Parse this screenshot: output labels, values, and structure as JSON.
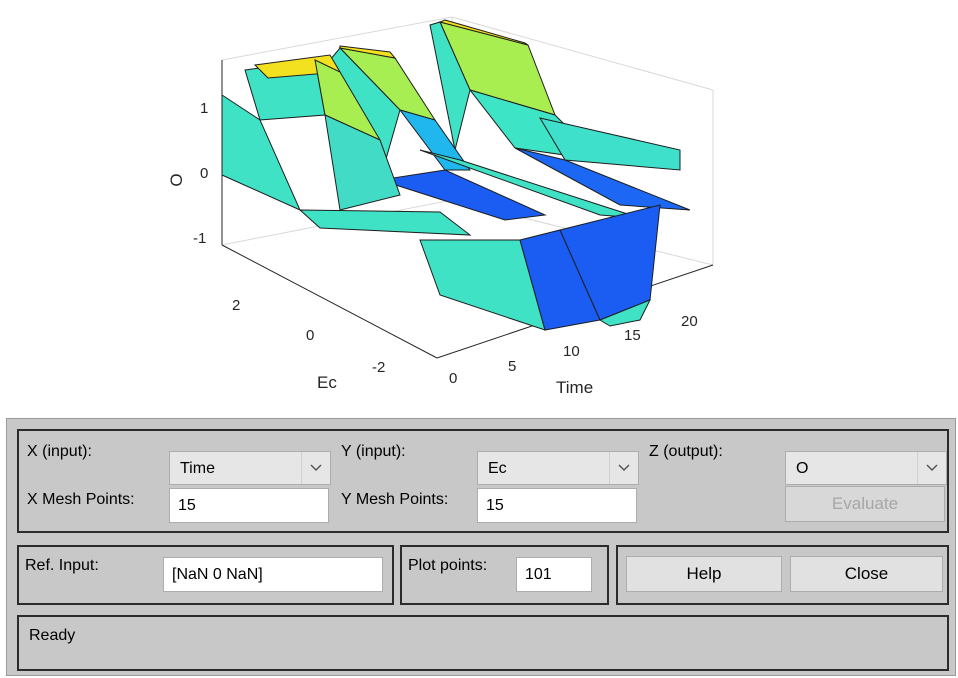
{
  "plot": {
    "zlabel": "O",
    "xlabel": "Time",
    "ylabel": "Ec",
    "z_ticks": [
      "1",
      "0",
      "-1"
    ],
    "x_ticks": [
      "0",
      "5",
      "10",
      "15",
      "20"
    ],
    "y_ticks": [
      "2",
      "0",
      "-2"
    ],
    "colors": {
      "low": "#1a5cf5",
      "mid": "#3de3c8",
      "high": "#f3e11e"
    }
  },
  "controls": {
    "x_input_label": "X (input):",
    "x_input_value": "Time",
    "y_input_label": "Y (input):",
    "y_input_value": "Ec",
    "z_output_label": "Z (output):",
    "z_output_value": "O",
    "x_mesh_label": "X Mesh Points:",
    "x_mesh_value": "15",
    "y_mesh_label": "Y Mesh Points:",
    "y_mesh_value": "15",
    "evaluate_label": "Evaluate",
    "ref_input_label": "Ref. Input:",
    "ref_input_value": "[NaN 0 NaN]",
    "plot_points_label": "Plot points:",
    "plot_points_value": "101",
    "help_label": "Help",
    "close_label": "Close"
  },
  "status": {
    "text": "Ready"
  }
}
